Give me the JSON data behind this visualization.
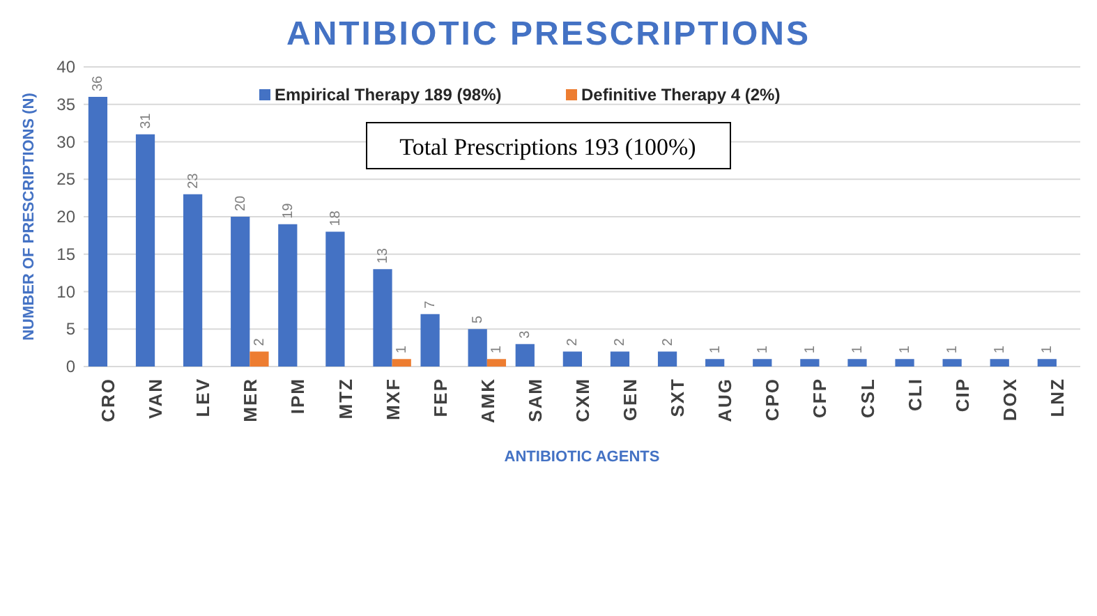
{
  "chart_data": {
    "type": "bar",
    "title": "ANTIBIOTIC PRESCRIPTIONS",
    "xlabel": "ANTIBIOTIC AGENTS",
    "ylabel": "NUMBER OF PRESCRIPTIONS (N)",
    "categories": [
      "CRO",
      "VAN",
      "LEV",
      "MER",
      "IPM",
      "MTZ",
      "MXF",
      "FEP",
      "AMK",
      "SAM",
      "CXM",
      "GEN",
      "SXT",
      "AUG",
      "CPO",
      "CFP",
      "CSL",
      "CLI",
      "CIP",
      "DOX",
      "LNZ"
    ],
    "series": [
      {
        "name": "Empirical Therapy 189 (98%)",
        "color": "#4472c4",
        "values": [
          36,
          31,
          23,
          20,
          19,
          18,
          13,
          7,
          5,
          3,
          2,
          2,
          2,
          1,
          1,
          1,
          1,
          1,
          1,
          1,
          1
        ]
      },
      {
        "name": "Definitive Therapy 4 (2%)",
        "color": "#ed7d31",
        "values": [
          null,
          null,
          null,
          2,
          null,
          null,
          1,
          null,
          1,
          null,
          null,
          null,
          null,
          null,
          null,
          null,
          null,
          null,
          null,
          null,
          null
        ]
      }
    ],
    "ylim": [
      0,
      40
    ],
    "yticks": [
      0,
      5,
      10,
      15,
      20,
      25,
      30,
      35,
      40
    ],
    "grid": "y",
    "legend": "top",
    "data_labels": true,
    "annotations": [
      "Total Prescriptions 193 (100%)"
    ]
  }
}
